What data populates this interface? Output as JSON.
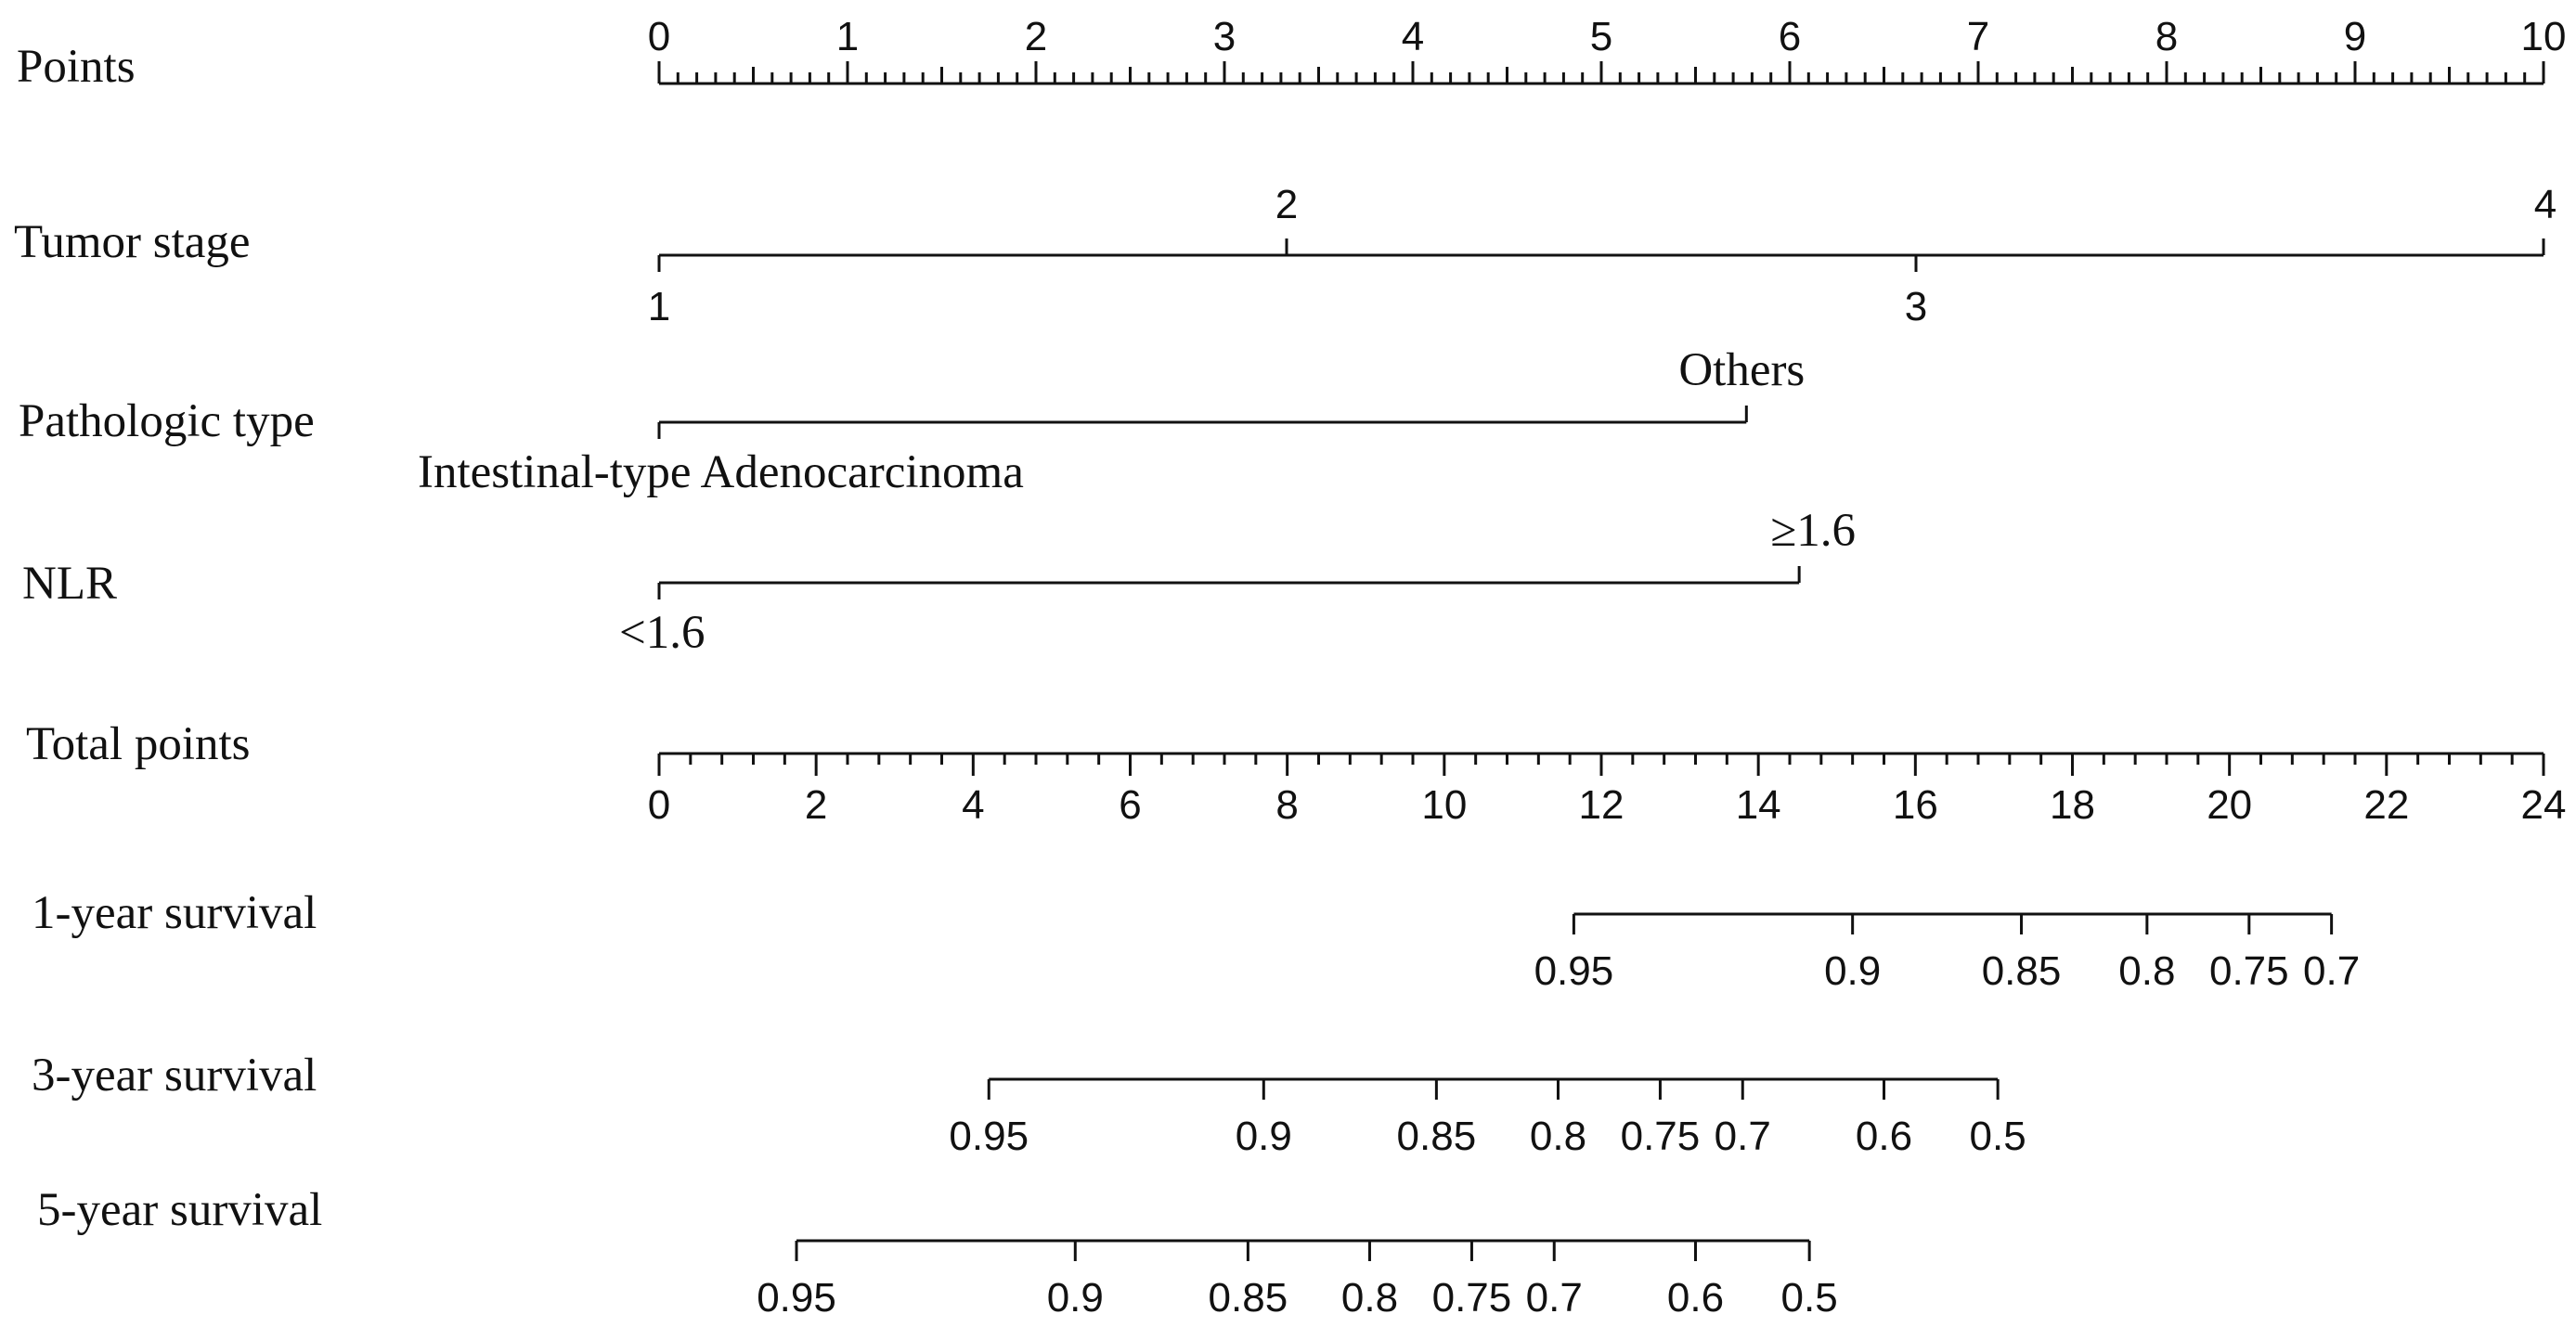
{
  "chart_data": {
    "type": "nomogram",
    "rows": [
      {
        "name": "Points",
        "kind": "scale",
        "range": [
          0,
          10
        ],
        "labels": [
          0,
          1,
          2,
          3,
          4,
          5,
          6,
          7,
          8,
          9,
          10
        ],
        "minor_step": 0.1,
        "label_position": "above"
      },
      {
        "name": "Tumor stage",
        "kind": "categorical",
        "categories": [
          {
            "label": "1",
            "points": 0,
            "label_position": "below"
          },
          {
            "label": "2",
            "points": 3.33,
            "label_position": "above"
          },
          {
            "label": "3",
            "points": 6.67,
            "label_position": "below"
          },
          {
            "label": "4",
            "points": 10,
            "label_position": "above"
          }
        ]
      },
      {
        "name": "Pathologic type",
        "kind": "categorical",
        "categories": [
          {
            "label": "Intestinal-type Adenocarcinoma",
            "points": 0,
            "label_position": "below"
          },
          {
            "label": "Others",
            "points": 5.77,
            "label_position": "above"
          }
        ]
      },
      {
        "name": "NLR",
        "kind": "categorical",
        "categories": [
          {
            "label": "<1.6",
            "points": 0,
            "label_position": "below"
          },
          {
            "label": "≥1.6",
            "points": 6.05,
            "label_position": "above"
          }
        ]
      },
      {
        "name": "Total points",
        "kind": "scale",
        "range": [
          0,
          24
        ],
        "labels": [
          0,
          2,
          4,
          6,
          8,
          10,
          12,
          14,
          16,
          18,
          20,
          22,
          24
        ],
        "minor_step": 0.4,
        "label_position": "below"
      },
      {
        "name": "1-year survival",
        "kind": "outcome",
        "ticks": [
          {
            "label": "0.95",
            "total_points": 11.65
          },
          {
            "label": "0.9",
            "total_points": 15.2
          },
          {
            "label": "0.85",
            "total_points": 17.35
          },
          {
            "label": "0.8",
            "total_points": 18.95
          },
          {
            "label": "0.75",
            "total_points": 20.25
          },
          {
            "label": "0.7",
            "total_points": 21.3
          }
        ]
      },
      {
        "name": "3-year survival",
        "kind": "outcome",
        "ticks": [
          {
            "label": "0.95",
            "total_points": 4.2
          },
          {
            "label": "0.9",
            "total_points": 7.7
          },
          {
            "label": "0.85",
            "total_points": 9.9
          },
          {
            "label": "0.8",
            "total_points": 11.45
          },
          {
            "label": "0.75",
            "total_points": 12.75
          },
          {
            "label": "0.7",
            "total_points": 13.8
          },
          {
            "label": "0.6",
            "total_points": 15.6
          },
          {
            "label": "0.5",
            "total_points": 17.05
          }
        ]
      },
      {
        "name": "5-year survival",
        "kind": "outcome",
        "ticks": [
          {
            "label": "0.95",
            "total_points": 1.75
          },
          {
            "label": "0.9",
            "total_points": 5.3
          },
          {
            "label": "0.85",
            "total_points": 7.5
          },
          {
            "label": "0.8",
            "total_points": 9.05
          },
          {
            "label": "0.75",
            "total_points": 10.35
          },
          {
            "label": "0.7",
            "total_points": 11.4
          },
          {
            "label": "0.6",
            "total_points": 13.2
          },
          {
            "label": "0.5",
            "total_points": 14.65
          }
        ]
      }
    ]
  }
}
